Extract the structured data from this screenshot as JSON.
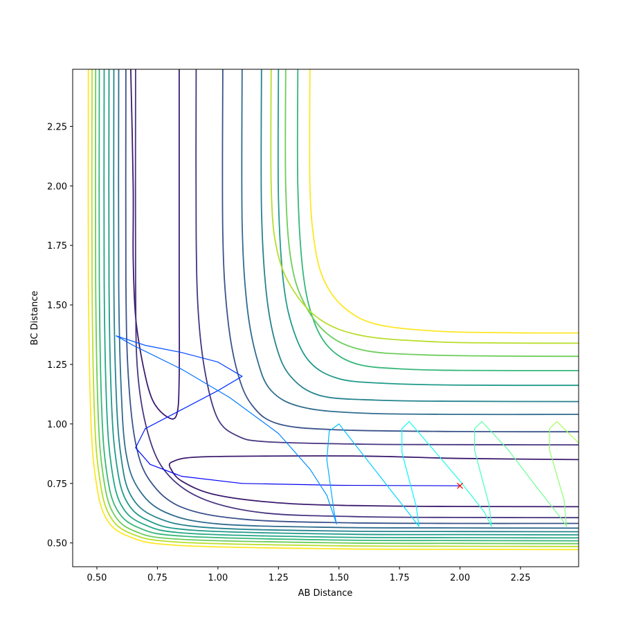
{
  "chart_data": {
    "type": "contour",
    "xlabel": "AB Distance",
    "ylabel": "BC Distance",
    "xlim": [
      0.4,
      2.49
    ],
    "ylim": [
      0.4,
      2.49
    ],
    "x_ticks": [
      "0.50",
      "0.75",
      "1.00",
      "1.25",
      "1.50",
      "1.75",
      "2.00",
      "2.25"
    ],
    "x_tick_values": [
      0.5,
      0.75,
      1.0,
      1.25,
      1.5,
      1.75,
      2.0,
      2.25
    ],
    "y_ticks": [
      "0.50",
      "0.75",
      "1.00",
      "1.25",
      "1.50",
      "1.75",
      "2.00",
      "2.25"
    ],
    "y_tick_values": [
      0.5,
      0.75,
      1.0,
      1.25,
      1.5,
      1.75,
      2.0,
      2.25
    ],
    "grid": false,
    "colormap": "viridis",
    "contours": [
      {
        "color": "#3b1a6e",
        "points": [
          [
            0.64,
            2.49
          ],
          [
            0.65,
            2.0
          ],
          [
            0.65,
            1.7
          ],
          [
            0.66,
            1.45
          ],
          [
            0.69,
            1.25
          ],
          [
            0.73,
            1.1
          ],
          [
            0.79,
            1.03
          ],
          [
            0.83,
            1.04
          ],
          [
            0.84,
            1.2
          ],
          [
            0.84,
            1.6
          ],
          [
            0.84,
            2.49
          ]
        ]
      },
      {
        "color": "#3b1a6e",
        "points": [
          [
            0.8,
            0.82
          ],
          [
            0.81,
            0.84
          ],
          [
            0.9,
            0.86
          ],
          [
            1.2,
            0.865
          ],
          [
            1.6,
            0.865
          ],
          [
            2.0,
            0.855
          ],
          [
            2.49,
            0.85
          ]
        ]
      },
      {
        "color": "#3b1a6e",
        "points": [
          [
            0.8,
            0.82
          ],
          [
            0.85,
            0.76
          ],
          [
            1.0,
            0.7
          ],
          [
            1.3,
            0.665
          ],
          [
            1.7,
            0.655
          ],
          [
            2.1,
            0.653
          ],
          [
            2.49,
            0.652
          ]
        ]
      },
      {
        "color": "#463480",
        "points": [
          [
            0.91,
            2.49
          ],
          [
            0.91,
            1.8
          ],
          [
            0.92,
            1.45
          ],
          [
            0.95,
            1.2
          ],
          [
            1.0,
            1.02
          ],
          [
            1.08,
            0.95
          ],
          [
            1.2,
            0.925
          ],
          [
            1.6,
            0.915
          ],
          [
            2.0,
            0.913
          ],
          [
            2.49,
            0.912
          ]
        ]
      },
      {
        "color": "#463480",
        "points": [
          [
            0.66,
            2.49
          ],
          [
            0.66,
            1.6
          ],
          [
            0.67,
            1.2
          ],
          [
            0.72,
            0.93
          ],
          [
            0.8,
            0.78
          ],
          [
            0.95,
            0.68
          ],
          [
            1.2,
            0.625
          ],
          [
            1.6,
            0.61
          ],
          [
            2.0,
            0.607
          ],
          [
            2.49,
            0.606
          ]
        ]
      },
      {
        "color": "#3a528b",
        "points": [
          [
            1.02,
            2.49
          ],
          [
            1.02,
            1.8
          ],
          [
            1.04,
            1.45
          ],
          [
            1.08,
            1.22
          ],
          [
            1.14,
            1.08
          ],
          [
            1.25,
            1.0
          ],
          [
            1.5,
            0.975
          ],
          [
            2.0,
            0.968
          ],
          [
            2.49,
            0.967
          ]
        ]
      },
      {
        "color": "#3a528b",
        "points": [
          [
            0.62,
            2.49
          ],
          [
            0.62,
            1.6
          ],
          [
            0.63,
            1.2
          ],
          [
            0.66,
            0.92
          ],
          [
            0.72,
            0.76
          ],
          [
            0.85,
            0.65
          ],
          [
            1.1,
            0.6
          ],
          [
            1.5,
            0.585
          ],
          [
            2.0,
            0.582
          ],
          [
            2.49,
            0.582
          ]
        ]
      },
      {
        "color": "#2f6c8e",
        "points": [
          [
            1.1,
            2.49
          ],
          [
            1.1,
            1.85
          ],
          [
            1.12,
            1.5
          ],
          [
            1.16,
            1.28
          ],
          [
            1.22,
            1.14
          ],
          [
            1.35,
            1.07
          ],
          [
            1.6,
            1.045
          ],
          [
            2.0,
            1.04
          ],
          [
            2.49,
            1.04
          ]
        ]
      },
      {
        "color": "#2f6c8e",
        "points": [
          [
            0.59,
            2.49
          ],
          [
            0.59,
            1.6
          ],
          [
            0.6,
            1.15
          ],
          [
            0.62,
            0.88
          ],
          [
            0.67,
            0.73
          ],
          [
            0.78,
            0.63
          ],
          [
            1.0,
            0.58
          ],
          [
            1.5,
            0.565
          ],
          [
            2.0,
            0.563
          ],
          [
            2.49,
            0.562
          ]
        ]
      },
      {
        "color": "#25838e",
        "points": [
          [
            1.18,
            2.49
          ],
          [
            1.18,
            1.9
          ],
          [
            1.2,
            1.55
          ],
          [
            1.24,
            1.33
          ],
          [
            1.3,
            1.2
          ],
          [
            1.42,
            1.12
          ],
          [
            1.65,
            1.1
          ],
          [
            2.0,
            1.095
          ],
          [
            2.49,
            1.094
          ]
        ]
      },
      {
        "color": "#25838e",
        "points": [
          [
            0.57,
            2.49
          ],
          [
            0.57,
            1.6
          ],
          [
            0.58,
            1.12
          ],
          [
            0.6,
            0.86
          ],
          [
            0.64,
            0.7
          ],
          [
            0.74,
            0.61
          ],
          [
            0.95,
            0.565
          ],
          [
            1.5,
            0.55
          ],
          [
            2.0,
            0.548
          ],
          [
            2.49,
            0.547
          ]
        ]
      },
      {
        "color": "#1f9a8a",
        "points": [
          [
            1.25,
            2.49
          ],
          [
            1.25,
            1.95
          ],
          [
            1.27,
            1.6
          ],
          [
            1.31,
            1.4
          ],
          [
            1.38,
            1.26
          ],
          [
            1.5,
            1.19
          ],
          [
            1.7,
            1.17
          ],
          [
            2.0,
            1.163
          ],
          [
            2.49,
            1.162
          ]
        ]
      },
      {
        "color": "#1f9a8a",
        "points": [
          [
            0.55,
            2.49
          ],
          [
            0.55,
            1.6
          ],
          [
            0.56,
            1.1
          ],
          [
            0.58,
            0.84
          ],
          [
            0.62,
            0.68
          ],
          [
            0.71,
            0.595
          ],
          [
            0.9,
            0.553
          ],
          [
            1.5,
            0.537
          ],
          [
            2.0,
            0.535
          ],
          [
            2.49,
            0.534
          ]
        ]
      },
      {
        "color": "#21a685",
        "points": [
          [
            0.53,
            2.49
          ],
          [
            0.53,
            1.6
          ],
          [
            0.54,
            1.08
          ],
          [
            0.56,
            0.82
          ],
          [
            0.6,
            0.66
          ],
          [
            0.69,
            0.58
          ],
          [
            0.88,
            0.54
          ],
          [
            1.5,
            0.524
          ],
          [
            2.0,
            0.522
          ],
          [
            2.49,
            0.521
          ]
        ]
      },
      {
        "color": "#35b779",
        "points": [
          [
            1.33,
            2.49
          ],
          [
            1.33,
            2.0
          ],
          [
            1.35,
            1.65
          ],
          [
            1.39,
            1.45
          ],
          [
            1.46,
            1.32
          ],
          [
            1.58,
            1.25
          ],
          [
            1.78,
            1.23
          ],
          [
            2.0,
            1.225
          ],
          [
            2.49,
            1.224
          ]
        ]
      },
      {
        "color": "#35b779",
        "points": [
          [
            0.51,
            2.49
          ],
          [
            0.51,
            1.6
          ],
          [
            0.52,
            1.06
          ],
          [
            0.54,
            0.8
          ],
          [
            0.58,
            0.645
          ],
          [
            0.67,
            0.565
          ],
          [
            0.86,
            0.528
          ],
          [
            1.5,
            0.512
          ],
          [
            2.0,
            0.51
          ],
          [
            2.49,
            0.509
          ]
        ]
      },
      {
        "color": "#6ccd5a",
        "points": [
          [
            1.28,
            2.49
          ],
          [
            1.28,
            2.0
          ],
          [
            1.3,
            1.7
          ],
          [
            1.35,
            1.52
          ],
          [
            1.45,
            1.38
          ],
          [
            1.6,
            1.31
          ],
          [
            1.85,
            1.29
          ],
          [
            2.2,
            1.285
          ],
          [
            2.49,
            1.284
          ]
        ]
      },
      {
        "color": "#6ccd5a",
        "points": [
          [
            0.495,
            2.49
          ],
          [
            0.495,
            1.6
          ],
          [
            0.505,
            1.05
          ],
          [
            0.525,
            0.79
          ],
          [
            0.565,
            0.63
          ],
          [
            0.655,
            0.55
          ],
          [
            0.85,
            0.515
          ],
          [
            1.5,
            0.5
          ],
          [
            2.0,
            0.498
          ],
          [
            2.49,
            0.497
          ]
        ]
      },
      {
        "color": "#b8de29",
        "points": [
          [
            1.22,
            2.49
          ],
          [
            1.22,
            2.0
          ],
          [
            1.24,
            1.75
          ],
          [
            1.3,
            1.58
          ],
          [
            1.42,
            1.44
          ],
          [
            1.6,
            1.37
          ],
          [
            1.9,
            1.345
          ],
          [
            2.2,
            1.34
          ],
          [
            2.49,
            1.339
          ]
        ]
      },
      {
        "color": "#b8de29",
        "points": [
          [
            0.48,
            2.49
          ],
          [
            0.48,
            1.6
          ],
          [
            0.49,
            1.04
          ],
          [
            0.51,
            0.78
          ],
          [
            0.55,
            0.62
          ],
          [
            0.64,
            0.54
          ],
          [
            0.84,
            0.503
          ],
          [
            1.5,
            0.488
          ],
          [
            2.0,
            0.486
          ],
          [
            2.49,
            0.485
          ]
        ]
      },
      {
        "color": "#fde725",
        "points": [
          [
            1.38,
            2.49
          ],
          [
            1.38,
            2.0
          ],
          [
            1.4,
            1.75
          ],
          [
            1.44,
            1.6
          ],
          [
            1.52,
            1.49
          ],
          [
            1.65,
            1.42
          ],
          [
            1.9,
            1.39
          ],
          [
            2.2,
            1.383
          ],
          [
            2.49,
            1.382
          ]
        ]
      },
      {
        "color": "#fde725",
        "points": [
          [
            0.465,
            2.49
          ],
          [
            0.465,
            1.6
          ],
          [
            0.475,
            1.03
          ],
          [
            0.495,
            0.77
          ],
          [
            0.535,
            0.61
          ],
          [
            0.625,
            0.53
          ],
          [
            0.83,
            0.49
          ],
          [
            1.5,
            0.475
          ],
          [
            2.0,
            0.473
          ],
          [
            2.49,
            0.472
          ]
        ]
      }
    ],
    "trajectory": {
      "colormap": "jet",
      "points": [
        [
          2.0,
          0.74
        ],
        [
          1.5,
          0.742
        ],
        [
          1.1,
          0.75
        ],
        [
          0.85,
          0.78
        ],
        [
          0.72,
          0.83
        ],
        [
          0.66,
          0.9
        ],
        [
          0.7,
          0.98
        ],
        [
          0.85,
          1.06
        ],
        [
          1.0,
          1.14
        ],
        [
          1.1,
          1.2
        ],
        [
          1.0,
          1.26
        ],
        [
          0.85,
          1.3
        ],
        [
          0.7,
          1.33
        ],
        [
          0.58,
          1.37
        ],
        [
          0.65,
          1.33
        ],
        [
          0.85,
          1.23
        ],
        [
          1.05,
          1.11
        ],
        [
          1.25,
          0.96
        ],
        [
          1.38,
          0.81
        ],
        [
          1.45,
          0.7
        ],
        [
          1.49,
          0.58
        ],
        [
          1.48,
          0.63
        ],
        [
          1.45,
          0.85
        ],
        [
          1.46,
          0.97
        ],
        [
          1.5,
          1.0
        ],
        [
          1.6,
          0.87
        ],
        [
          1.7,
          0.74
        ],
        [
          1.8,
          0.61
        ],
        [
          1.83,
          0.57
        ],
        [
          1.82,
          0.65
        ],
        [
          1.76,
          0.88
        ],
        [
          1.76,
          0.98
        ],
        [
          1.79,
          1.01
        ],
        [
          1.9,
          0.88
        ],
        [
          2.0,
          0.76
        ],
        [
          2.1,
          0.63
        ],
        [
          2.13,
          0.57
        ],
        [
          2.12,
          0.66
        ],
        [
          2.06,
          0.89
        ],
        [
          2.06,
          0.98
        ],
        [
          2.09,
          1.01
        ],
        [
          2.2,
          0.89
        ],
        [
          2.32,
          0.73
        ],
        [
          2.42,
          0.6
        ],
        [
          2.44,
          0.57
        ],
        [
          2.43,
          0.68
        ],
        [
          2.37,
          0.89
        ],
        [
          2.37,
          0.98
        ],
        [
          2.4,
          1.01
        ],
        [
          2.49,
          0.92
        ]
      ]
    },
    "start_marker": {
      "x": 2.0,
      "y": 0.74,
      "symbol": "×",
      "color": "#ff0000"
    }
  }
}
